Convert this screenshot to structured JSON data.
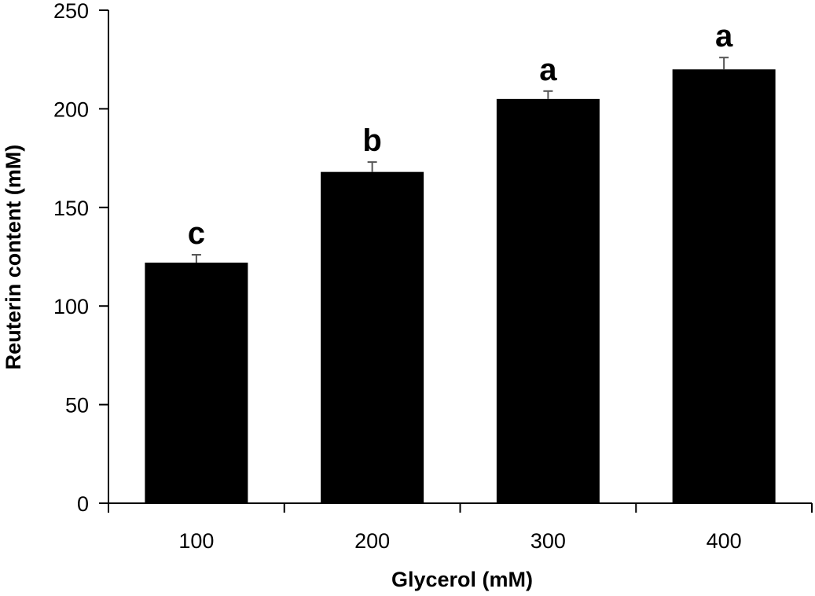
{
  "chart_data": {
    "type": "bar",
    "title": "",
    "xlabel": "Glycerol (mM)",
    "ylabel": "Reuterin content (mM)",
    "categories": [
      "100",
      "200",
      "300",
      "400"
    ],
    "series": [
      {
        "values": [
          122,
          168,
          205,
          220
        ],
        "error": [
          4,
          5,
          4,
          6
        ]
      }
    ],
    "annotations": [
      "c",
      "b",
      "a",
      "a"
    ],
    "ylim": [
      0,
      250
    ],
    "yticks": [
      0,
      50,
      100,
      150,
      200,
      250
    ],
    "ytick_labels": [
      "0",
      "50",
      "100",
      "150",
      "200",
      "250"
    ],
    "grid": false,
    "legend": "none",
    "bar_color": "#000000",
    "error_bar_color": "#555555"
  }
}
